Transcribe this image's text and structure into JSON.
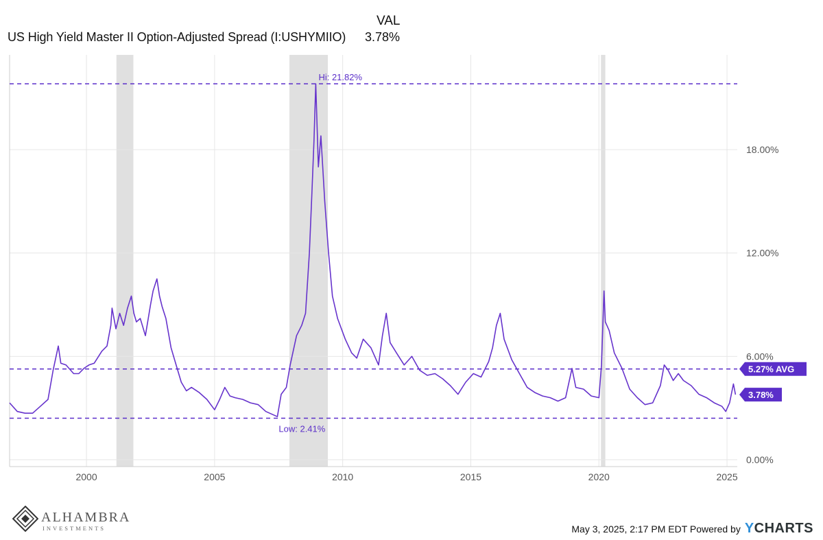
{
  "header": {
    "col_label": "VAL",
    "series_name": "US High Yield Master II Option-Adjusted Spread (I:USHYMIIO)",
    "series_value": "3.78%"
  },
  "colors": {
    "line": "#6633cc",
    "recession": "#e0e0e0",
    "grid": "#e6e6e6",
    "ref_line": "#5b2fc9",
    "tag_bg": "#5b2fc9",
    "tick_text": "#555555"
  },
  "chart_data": {
    "type": "line",
    "title": "",
    "xlabel": "",
    "ylabel": "",
    "xlim": [
      1997.0,
      2025.4
    ],
    "ylim": [
      0,
      23.5
    ],
    "y_ticks": [
      0,
      6,
      12,
      18
    ],
    "y_tick_labels": [
      "0.00%",
      "6.00%",
      "12.00%",
      "18.00%"
    ],
    "x_ticks": [
      2000,
      2005,
      2010,
      2015,
      2020,
      2025
    ],
    "x_tick_labels": [
      "2000",
      "2005",
      "2010",
      "2015",
      "2020",
      "2025"
    ],
    "grid": true,
    "recessions": [
      [
        2001.17,
        2001.83
      ],
      [
        2007.92,
        2009.42
      ],
      [
        2020.08,
        2020.25
      ]
    ],
    "reference_lines": [
      {
        "value": 21.82,
        "label": "Hi: 21.82%"
      },
      {
        "value": 5.27,
        "label": "5.27% AVG"
      },
      {
        "value": 2.41,
        "label": "Low: 2.41%"
      }
    ],
    "last_value": {
      "value": 3.78,
      "label": "3.78%"
    },
    "series": [
      {
        "x": [
          1997.0,
          1997.3,
          1997.6,
          1997.9,
          1998.2,
          1998.5,
          1998.7,
          1998.9,
          1999.0,
          1999.2,
          1999.5,
          1999.7,
          1999.9,
          2000.1,
          2000.3,
          2000.6,
          2000.8,
          2000.95,
          2001.0,
          2001.15,
          2001.3,
          2001.45,
          2001.6,
          2001.75,
          2001.85,
          2001.95,
          2002.1,
          2002.3,
          2002.5,
          2002.6,
          2002.75,
          2002.85,
          2002.95,
          2003.1,
          2003.3,
          2003.5,
          2003.7,
          2003.9,
          2004.1,
          2004.4,
          2004.7,
          2005.0,
          2005.2,
          2005.4,
          2005.6,
          2005.8,
          2006.1,
          2006.4,
          2006.7,
          2007.0,
          2007.3,
          2007.45,
          2007.6,
          2007.8,
          2007.95,
          2008.2,
          2008.4,
          2008.55,
          2008.7,
          2008.8,
          2008.88,
          2008.95,
          2009.05,
          2009.15,
          2009.3,
          2009.45,
          2009.6,
          2009.8,
          2010.1,
          2010.35,
          2010.55,
          2010.8,
          2011.1,
          2011.4,
          2011.55,
          2011.7,
          2011.85,
          2012.1,
          2012.4,
          2012.7,
          2013.0,
          2013.3,
          2013.6,
          2013.9,
          2014.2,
          2014.5,
          2014.8,
          2015.1,
          2015.4,
          2015.7,
          2015.85,
          2016.0,
          2016.15,
          2016.3,
          2016.6,
          2016.9,
          2017.2,
          2017.5,
          2017.8,
          2018.1,
          2018.4,
          2018.7,
          2018.95,
          2019.1,
          2019.4,
          2019.7,
          2020.0,
          2020.1,
          2020.2,
          2020.25,
          2020.4,
          2020.6,
          2020.9,
          2021.2,
          2021.5,
          2021.8,
          2022.1,
          2022.4,
          2022.55,
          2022.7,
          2022.9,
          2023.1,
          2023.3,
          2023.6,
          2023.9,
          2024.2,
          2024.5,
          2024.8,
          2024.95,
          2025.1,
          2025.25,
          2025.33
        ],
        "y": [
          3.3,
          2.8,
          2.7,
          2.7,
          3.1,
          3.5,
          5.2,
          6.6,
          5.6,
          5.5,
          5.0,
          5.0,
          5.3,
          5.5,
          5.6,
          6.3,
          6.6,
          7.8,
          8.8,
          7.6,
          8.5,
          7.8,
          8.8,
          9.5,
          8.5,
          8.0,
          8.2,
          7.2,
          9.0,
          9.8,
          10.5,
          9.5,
          8.9,
          8.2,
          6.5,
          5.5,
          4.5,
          4.0,
          4.2,
          3.9,
          3.5,
          2.9,
          3.5,
          4.2,
          3.7,
          3.6,
          3.5,
          3.3,
          3.2,
          2.8,
          2.6,
          2.5,
          3.8,
          4.2,
          5.5,
          7.2,
          7.8,
          8.5,
          12.0,
          15.5,
          18.5,
          21.82,
          17.0,
          18.8,
          15.0,
          12.0,
          9.5,
          8.2,
          7.0,
          6.2,
          5.9,
          7.0,
          6.5,
          5.5,
          7.2,
          8.5,
          6.8,
          6.2,
          5.5,
          6.0,
          5.2,
          4.9,
          5.0,
          4.7,
          4.3,
          3.8,
          4.5,
          5.0,
          4.8,
          5.7,
          6.5,
          7.8,
          8.5,
          7.0,
          5.8,
          5.0,
          4.2,
          3.9,
          3.7,
          3.6,
          3.4,
          3.6,
          5.3,
          4.2,
          4.1,
          3.7,
          3.6,
          5.5,
          9.8,
          8.0,
          7.5,
          6.2,
          5.3,
          4.1,
          3.6,
          3.2,
          3.3,
          4.3,
          5.5,
          5.2,
          4.6,
          5.0,
          4.6,
          4.3,
          3.8,
          3.6,
          3.3,
          3.1,
          2.8,
          3.3,
          4.4,
          3.78
        ]
      }
    ]
  },
  "footer": {
    "timestamp": "May 3, 2025, 2:17 PM EDT Powered by",
    "brand_y": "Y",
    "brand_rest": "CHARTS"
  },
  "logo": {
    "name": "ALHAMBRA",
    "sub": "INVESTMENTS"
  }
}
